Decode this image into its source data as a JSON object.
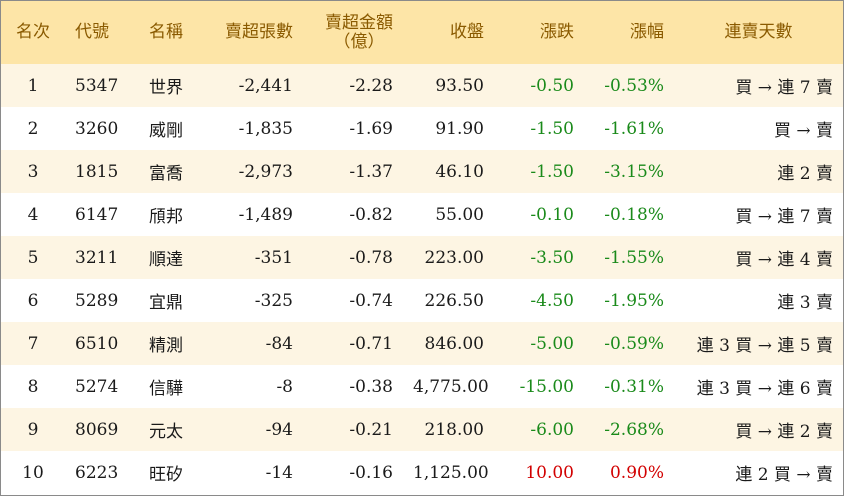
{
  "headers": {
    "rank": "名次",
    "code": "代號",
    "name": "名稱",
    "net_sell_shares": "賣超張數",
    "net_sell_amount_line1": "賣超金額",
    "net_sell_amount_line2": "（億）",
    "close": "收盤",
    "change": "漲跌",
    "pct": "漲幅",
    "streak": "連賣天數"
  },
  "colors": {
    "header_bg": "#fde5a7",
    "header_text": "#8a5a00",
    "row_odd_bg": "#fdf5e3",
    "row_even_bg": "#ffffff",
    "up": "#d20000",
    "down": "#1a8a1a"
  },
  "rows": [
    {
      "rank": "1",
      "code": "5347",
      "name": "世界",
      "shares": "-2,441",
      "amount": "-2.28",
      "close": "93.50",
      "change": "-0.50",
      "pct": "-0.53%",
      "dir": "down",
      "streak": "買 → 連 7 賣"
    },
    {
      "rank": "2",
      "code": "3260",
      "name": "威剛",
      "shares": "-1,835",
      "amount": "-1.69",
      "close": "91.90",
      "change": "-1.50",
      "pct": "-1.61%",
      "dir": "down",
      "streak": "買 → 賣"
    },
    {
      "rank": "3",
      "code": "1815",
      "name": "富喬",
      "shares": "-2,973",
      "amount": "-1.37",
      "close": "46.10",
      "change": "-1.50",
      "pct": "-3.15%",
      "dir": "down",
      "streak": "連 2 賣"
    },
    {
      "rank": "4",
      "code": "6147",
      "name": "頎邦",
      "shares": "-1,489",
      "amount": "-0.82",
      "close": "55.00",
      "change": "-0.10",
      "pct": "-0.18%",
      "dir": "down",
      "streak": "買 → 連 7 賣"
    },
    {
      "rank": "5",
      "code": "3211",
      "name": "順達",
      "shares": "-351",
      "amount": "-0.78",
      "close": "223.00",
      "change": "-3.50",
      "pct": "-1.55%",
      "dir": "down",
      "streak": "買 → 連 4 賣"
    },
    {
      "rank": "6",
      "code": "5289",
      "name": "宜鼎",
      "shares": "-325",
      "amount": "-0.74",
      "close": "226.50",
      "change": "-4.50",
      "pct": "-1.95%",
      "dir": "down",
      "streak": "連 3 賣"
    },
    {
      "rank": "7",
      "code": "6510",
      "name": "精測",
      "shares": "-84",
      "amount": "-0.71",
      "close": "846.00",
      "change": "-5.00",
      "pct": "-0.59%",
      "dir": "down",
      "streak": "連 3 買 → 連 5 賣"
    },
    {
      "rank": "8",
      "code": "5274",
      "name": "信驊",
      "shares": "-8",
      "amount": "-0.38",
      "close": "4,775.00",
      "change": "-15.00",
      "pct": "-0.31%",
      "dir": "down",
      "streak": "連 3 買 → 連 6 賣"
    },
    {
      "rank": "9",
      "code": "8069",
      "name": "元太",
      "shares": "-94",
      "amount": "-0.21",
      "close": "218.00",
      "change": "-6.00",
      "pct": "-2.68%",
      "dir": "down",
      "streak": "買 → 連 2 賣"
    },
    {
      "rank": "10",
      "code": "6223",
      "name": "旺矽",
      "shares": "-14",
      "amount": "-0.16",
      "close": "1,125.00",
      "change": "10.00",
      "pct": "0.90%",
      "dir": "up",
      "streak": "連 2 買 → 賣"
    }
  ]
}
